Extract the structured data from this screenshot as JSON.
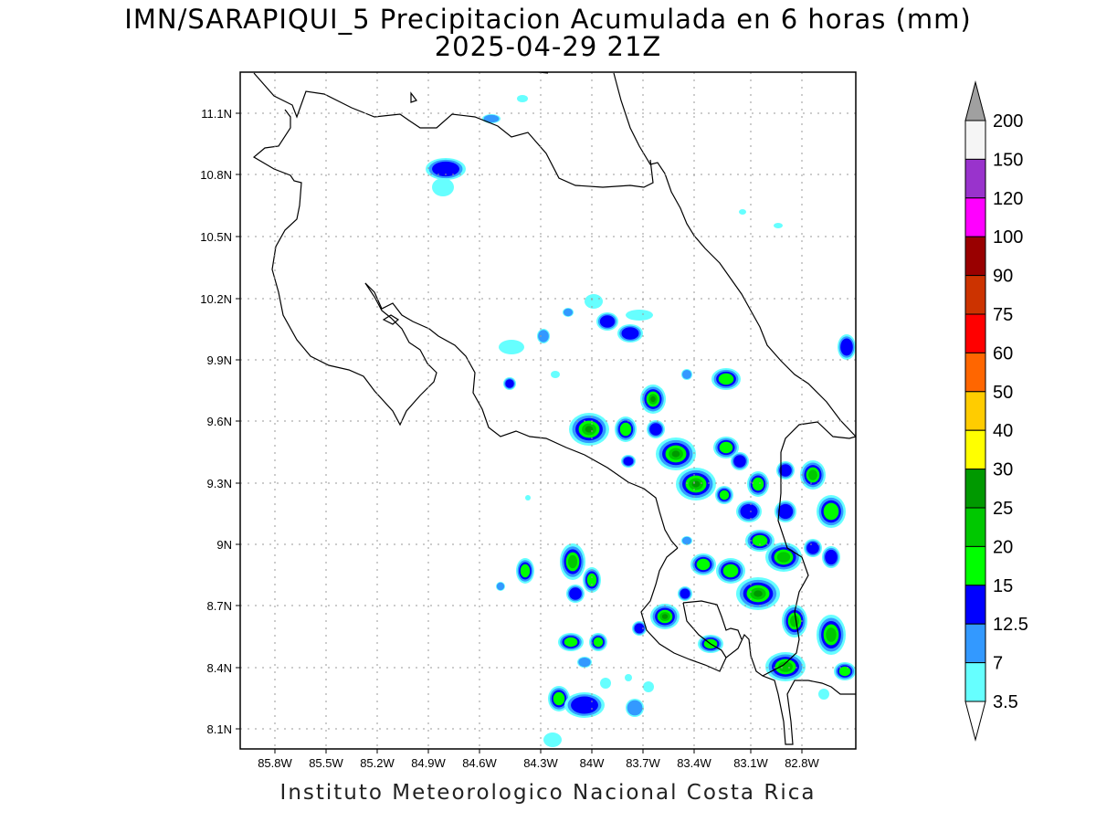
{
  "title": {
    "line1": "IMN/SARAPIQUI_5 Precipitacion Acumulada en 6 horas (mm)",
    "line2": "2025-04-29 21Z"
  },
  "footer": "Instituto Meteorologico Nacional Costa Rica",
  "map": {
    "lon_range": [
      -86.0,
      -82.6
    ],
    "lat_range": [
      8.0,
      11.2
    ],
    "lat_labels": [
      "11.1N",
      "10.8N",
      "10.5N",
      "10.2N",
      "9.9N",
      "9.6N",
      "9.3N",
      "9N",
      "8.7N",
      "8.4N",
      "8.1N"
    ],
    "lon_labels": [
      "85.8W",
      "85.5W",
      "85.2W",
      "84.9W",
      "84.6W",
      "84.3W",
      "84W",
      "83.7W",
      "83.4W",
      "83.1W",
      "82.8W"
    ],
    "grid": true
  },
  "legend": {
    "labels": [
      "200",
      "150",
      "120",
      "100",
      "90",
      "75",
      "60",
      "50",
      "40",
      "30",
      "25",
      "20",
      "15",
      "12.5",
      "7",
      "3.5"
    ],
    "colors": [
      "#f5f5f5",
      "#9933cc",
      "#ff00ff",
      "#990000",
      "#cc3300",
      "#ff0000",
      "#ff6600",
      "#ffcc00",
      "#ffff00",
      "#009900",
      "#00c800",
      "#00ff00",
      "#0000ff",
      "#3399ff",
      "#66ffff"
    ],
    "over_color": "#a0a0a0",
    "under_color": "#ffffff"
  }
}
